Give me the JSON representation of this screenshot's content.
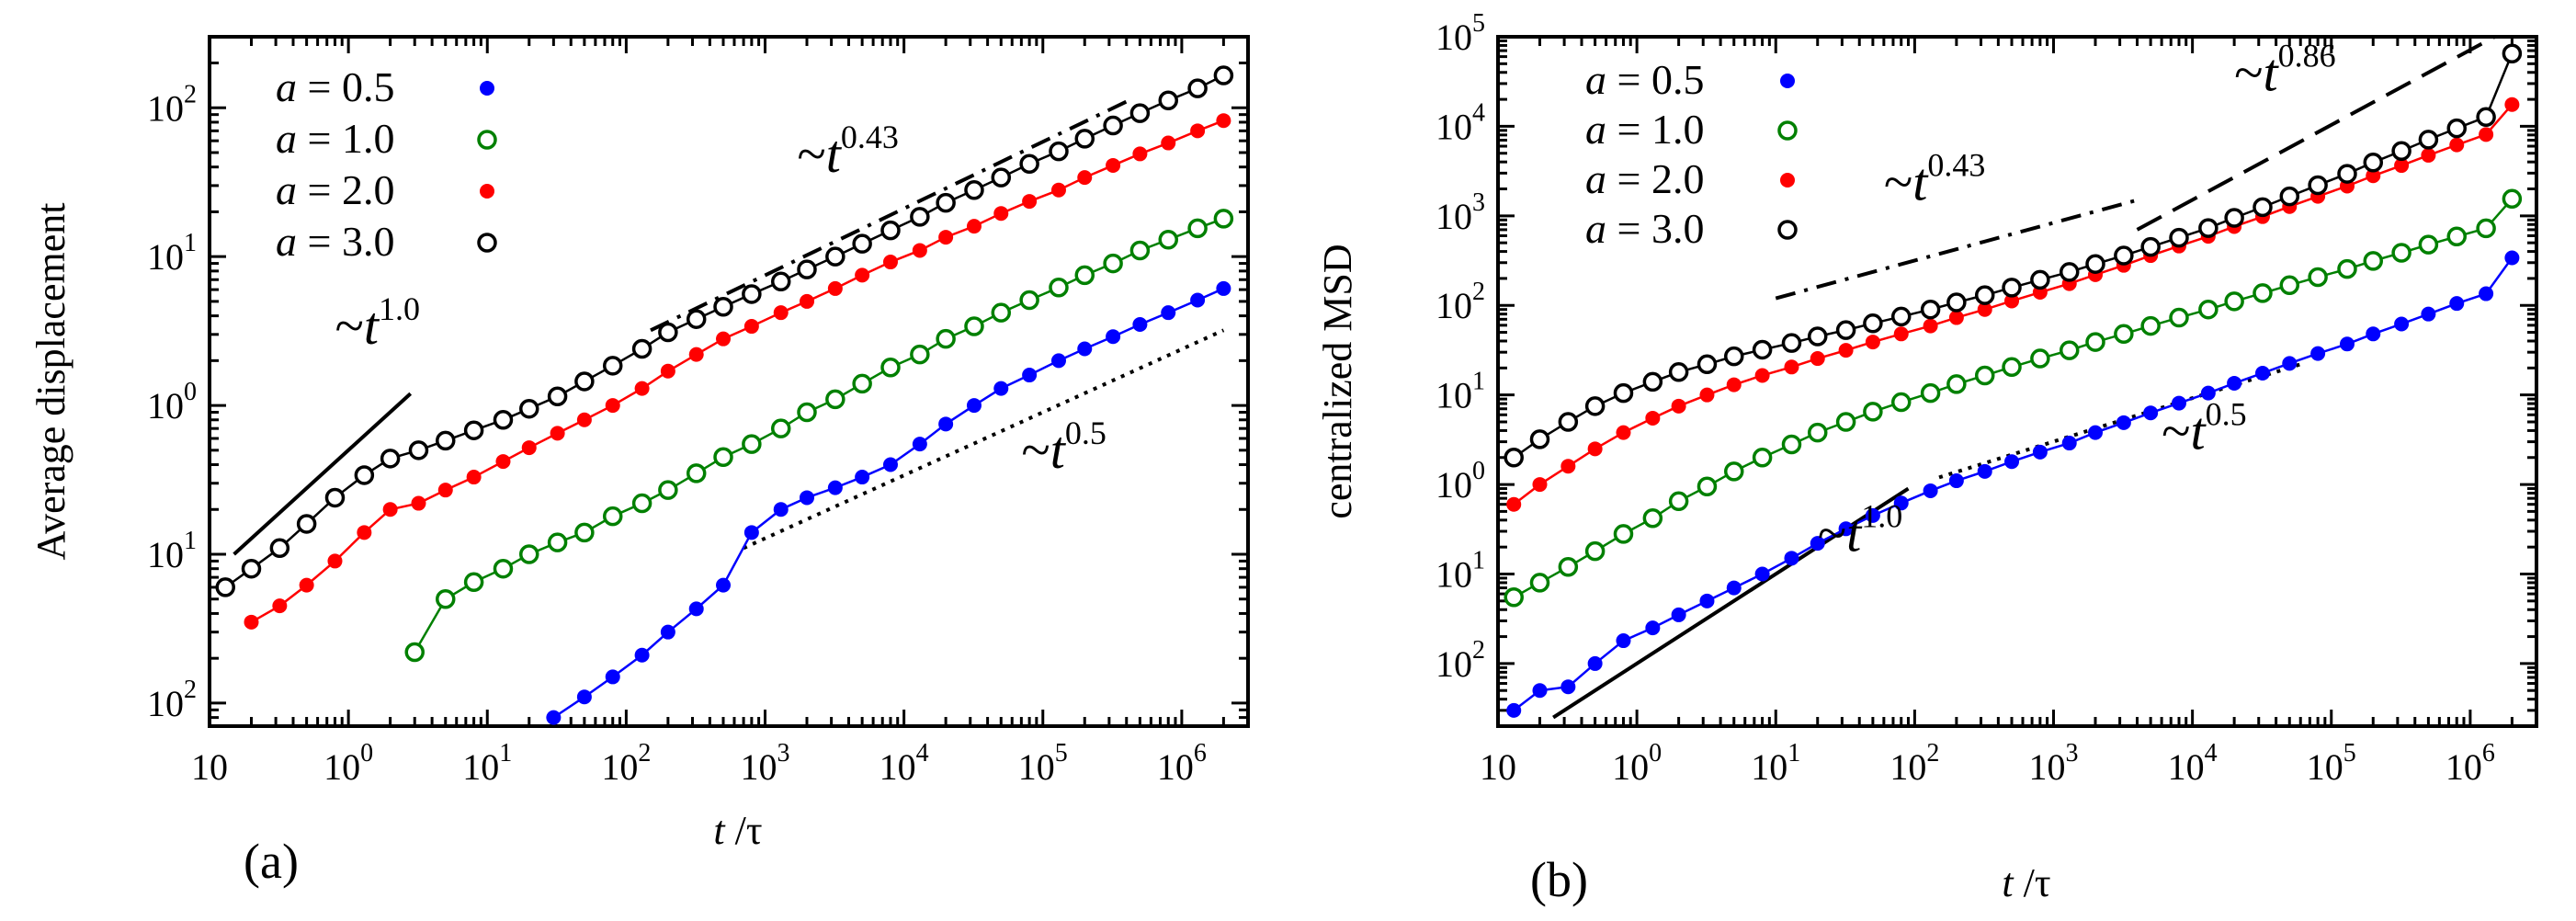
{
  "chart_data": [
    {
      "type": "line",
      "panel_label": "(a)",
      "xlabel": "t /τ",
      "ylabel": "Average displacement",
      "xscale": "log",
      "yscale": "log",
      "xlim": [
        0.1,
        3000000
      ],
      "ylim": [
        0.007,
        300
      ],
      "x_ticks": [
        {
          "value": 0.1,
          "base": "10",
          "exp": ""
        },
        {
          "value": 1,
          "base": "10",
          "exp": "0"
        },
        {
          "value": 10,
          "base": "10",
          "exp": "1"
        },
        {
          "value": 100,
          "base": "10",
          "exp": "2"
        },
        {
          "value": 1000,
          "base": "10",
          "exp": "3"
        },
        {
          "value": 10000,
          "base": "10",
          "exp": "4"
        },
        {
          "value": 100000,
          "base": "10",
          "exp": "5"
        },
        {
          "value": 1000000,
          "base": "10",
          "exp": "6"
        }
      ],
      "y_ticks": [
        {
          "value": 0.01,
          "base": "10",
          "exp": "2"
        },
        {
          "value": 0.1,
          "base": "10",
          "exp": "1"
        },
        {
          "value": 1,
          "base": "10",
          "exp": "0"
        },
        {
          "value": 10,
          "base": "10",
          "exp": "1"
        },
        {
          "value": 100,
          "base": "10",
          "exp": "2"
        }
      ],
      "legend_position": "top-left",
      "series": [
        {
          "name": "a = 0.5",
          "a": "0.5",
          "color": "#0000ff",
          "marker": "filled",
          "x": [
            30,
            50,
            80,
            130,
            200,
            320,
            500,
            800,
            1300,
            2000,
            3200,
            5000,
            8000,
            13000,
            20000,
            32000,
            50000,
            80000,
            130000,
            200000,
            320000,
            500000,
            800000,
            1300000,
            2000000
          ],
          "y": [
            0.008,
            0.011,
            0.015,
            0.021,
            0.03,
            0.043,
            0.062,
            0.14,
            0.2,
            0.24,
            0.28,
            0.33,
            0.4,
            0.55,
            0.75,
            1.0,
            1.3,
            1.6,
            2.0,
            2.4,
            2.9,
            3.5,
            4.2,
            5.1,
            6.1
          ]
        },
        {
          "name": "a = 1.0",
          "a": "1.0",
          "color": "#008000",
          "marker": "open",
          "x": [
            3,
            5,
            8,
            13,
            20,
            32,
            50,
            80,
            130,
            200,
            320,
            500,
            800,
            1300,
            2000,
            3200,
            5000,
            8000,
            13000,
            20000,
            32000,
            50000,
            80000,
            130000,
            200000,
            320000,
            500000,
            800000,
            1300000,
            2000000
          ],
          "y": [
            0.022,
            0.05,
            0.065,
            0.08,
            0.1,
            0.12,
            0.14,
            0.18,
            0.22,
            0.27,
            0.35,
            0.45,
            0.55,
            0.7,
            0.9,
            1.1,
            1.4,
            1.8,
            2.2,
            2.8,
            3.4,
            4.2,
            5.1,
            6.2,
            7.5,
            9.0,
            11,
            13,
            15.5,
            18
          ]
        },
        {
          "name": "a = 2.0",
          "a": "2.0",
          "color": "#ff0000",
          "marker": "filled",
          "x": [
            0.2,
            0.32,
            0.5,
            0.8,
            1.3,
            2,
            3.2,
            5,
            8,
            13,
            20,
            32,
            50,
            80,
            130,
            200,
            320,
            500,
            800,
            1300,
            2000,
            3200,
            5000,
            8000,
            13000,
            20000,
            32000,
            50000,
            80000,
            130000,
            200000,
            320000,
            500000,
            800000,
            1300000,
            2000000
          ],
          "y": [
            0.035,
            0.045,
            0.062,
            0.09,
            0.14,
            0.2,
            0.22,
            0.27,
            0.33,
            0.42,
            0.52,
            0.65,
            0.8,
            1.0,
            1.3,
            1.7,
            2.2,
            2.8,
            3.4,
            4.2,
            5.0,
            6.1,
            7.5,
            9.2,
            11,
            13.5,
            16,
            19.5,
            23.5,
            28,
            34,
            41,
            49,
            58,
            70,
            82
          ]
        },
        {
          "name": "a = 3.0",
          "a": "3.0",
          "color": "#000000",
          "marker": "open",
          "x": [
            0.13,
            0.2,
            0.32,
            0.5,
            0.8,
            1.3,
            2,
            3.2,
            5,
            8,
            13,
            20,
            32,
            50,
            80,
            130,
            200,
            320,
            500,
            800,
            1300,
            2000,
            3200,
            5000,
            8000,
            13000,
            20000,
            32000,
            50000,
            80000,
            130000,
            200000,
            320000,
            500000,
            800000,
            1300000,
            2000000
          ],
          "y": [
            0.06,
            0.08,
            0.11,
            0.16,
            0.24,
            0.34,
            0.44,
            0.5,
            0.58,
            0.68,
            0.8,
            0.95,
            1.15,
            1.45,
            1.85,
            2.4,
            3.1,
            3.8,
            4.6,
            5.6,
            6.8,
            8.2,
            10,
            12.2,
            15,
            18.5,
            23,
            28,
            34,
            42,
            51,
            62,
            76,
            92,
            112,
            135,
            165
          ]
        }
      ],
      "guides": [
        {
          "label_base": "~t",
          "label_exp": "1.0",
          "style": "solid",
          "x": [
            0.15,
            2.8
          ],
          "y": [
            0.1,
            1.2
          ],
          "label_x": 0.8,
          "label_y": 2.6
        },
        {
          "label_base": "~t",
          "label_exp": "0.43",
          "style": "dashdot",
          "x": [
            150,
            400000
          ],
          "y": [
            3.2,
            110
          ],
          "label_x": 1700,
          "label_y": 37
        },
        {
          "label_base": "~t",
          "label_exp": "0.5",
          "style": "dotted",
          "x": [
            700,
            2000000
          ],
          "y": [
            0.11,
            3.2
          ],
          "label_x": 70000,
          "label_y": 0.38
        }
      ]
    },
    {
      "type": "line",
      "panel_label": "(b)",
      "xlabel": "t /τ",
      "ylabel": "centralized MSD",
      "xscale": "log",
      "yscale": "log",
      "xlim": [
        0.1,
        3000000
      ],
      "ylim": [
        0.002,
        100000
      ],
      "x_ticks": [
        {
          "value": 0.1,
          "base": "10",
          "exp": ""
        },
        {
          "value": 1,
          "base": "10",
          "exp": "0"
        },
        {
          "value": 10,
          "base": "10",
          "exp": "1"
        },
        {
          "value": 100,
          "base": "10",
          "exp": "2"
        },
        {
          "value": 1000,
          "base": "10",
          "exp": "3"
        },
        {
          "value": 10000,
          "base": "10",
          "exp": "4"
        },
        {
          "value": 100000,
          "base": "10",
          "exp": "5"
        },
        {
          "value": 1000000,
          "base": "10",
          "exp": "6"
        }
      ],
      "y_ticks": [
        {
          "value": 0.01,
          "base": "10",
          "exp": "2"
        },
        {
          "value": 0.1,
          "base": "10",
          "exp": "1"
        },
        {
          "value": 1,
          "base": "10",
          "exp": "0"
        },
        {
          "value": 10,
          "base": "10",
          "exp": "1"
        },
        {
          "value": 100,
          "base": "10",
          "exp": "2"
        },
        {
          "value": 1000,
          "base": "10",
          "exp": "3"
        },
        {
          "value": 10000,
          "base": "10",
          "exp": "4"
        },
        {
          "value": 100000,
          "base": "10",
          "exp": "5"
        }
      ],
      "legend_position": "top-left",
      "series": [
        {
          "name": "a = 0.5",
          "a": "0.5",
          "color": "#0000ff",
          "marker": "filled",
          "x": [
            0.13,
            0.2,
            0.32,
            0.5,
            0.8,
            1.3,
            2,
            3.2,
            5,
            8,
            13,
            20,
            32,
            50,
            80,
            130,
            200,
            320,
            500,
            800,
            1300,
            2000,
            3200,
            5000,
            8000,
            13000,
            20000,
            32000,
            50000,
            80000,
            130000,
            200000,
            320000,
            500000,
            800000,
            1300000,
            2000000
          ],
          "y": [
            0.003,
            0.005,
            0.0055,
            0.01,
            0.018,
            0.025,
            0.035,
            0.05,
            0.07,
            0.1,
            0.15,
            0.22,
            0.32,
            0.45,
            0.62,
            0.85,
            1.1,
            1.4,
            1.8,
            2.3,
            2.9,
            3.8,
            4.9,
            6.3,
            8.1,
            10.5,
            13.5,
            17.5,
            22.5,
            29,
            37,
            48,
            62,
            80,
            105,
            135,
            340
          ]
        },
        {
          "name": "a = 1.0",
          "a": "1.0",
          "color": "#008000",
          "marker": "open",
          "x": [
            0.13,
            0.2,
            0.32,
            0.5,
            0.8,
            1.3,
            2,
            3.2,
            5,
            8,
            13,
            20,
            32,
            50,
            80,
            130,
            200,
            320,
            500,
            800,
            1300,
            2000,
            3200,
            5000,
            8000,
            13000,
            20000,
            32000,
            50000,
            80000,
            130000,
            200000,
            320000,
            500000,
            800000,
            1300000,
            2000000
          ],
          "y": [
            0.055,
            0.08,
            0.12,
            0.18,
            0.28,
            0.42,
            0.65,
            0.95,
            1.4,
            2.0,
            2.8,
            3.8,
            5.0,
            6.5,
            8.3,
            10.5,
            13.2,
            16.5,
            20.5,
            25.5,
            31.5,
            39,
            48,
            59,
            73,
            90,
            111,
            137,
            168,
            207,
            255,
            314,
            387,
            477,
            588,
            725,
            1550
          ]
        },
        {
          "name": "a = 2.0",
          "a": "2.0",
          "color": "#ff0000",
          "marker": "filled",
          "x": [
            0.13,
            0.2,
            0.32,
            0.5,
            0.8,
            1.3,
            2,
            3.2,
            5,
            8,
            13,
            20,
            32,
            50,
            80,
            130,
            200,
            320,
            500,
            800,
            1300,
            2000,
            3200,
            5000,
            8000,
            13000,
            20000,
            32000,
            50000,
            80000,
            130000,
            200000,
            320000,
            500000,
            800000,
            1300000,
            2000000
          ],
          "y": [
            0.6,
            1.0,
            1.6,
            2.5,
            3.8,
            5.5,
            7.5,
            10,
            13,
            16.5,
            20.5,
            25.5,
            31.5,
            39,
            48,
            59,
            73,
            90,
            112,
            140,
            175,
            220,
            280,
            360,
            460,
            590,
            760,
            980,
            1270,
            1650,
            2150,
            2800,
            3650,
            4750,
            6200,
            8100,
            17500
          ]
        },
        {
          "name": "a = 3.0",
          "a": "3.0",
          "color": "#000000",
          "marker": "open",
          "x": [
            0.13,
            0.2,
            0.32,
            0.5,
            0.8,
            1.3,
            2,
            3.2,
            5,
            8,
            13,
            20,
            32,
            50,
            80,
            130,
            200,
            320,
            500,
            800,
            1300,
            2000,
            3200,
            5000,
            8000,
            13000,
            20000,
            32000,
            50000,
            80000,
            130000,
            200000,
            320000,
            500000,
            800000,
            1300000,
            2000000
          ],
          "y": [
            2.0,
            3.2,
            5.0,
            7.5,
            10.5,
            14,
            18,
            22,
            27,
            32,
            38,
            45,
            53,
            63,
            75,
            90,
            108,
            130,
            158,
            193,
            236,
            290,
            360,
            450,
            570,
            730,
            950,
            1250,
            1650,
            2200,
            2950,
            3950,
            5300,
            7100,
            9500,
            12700,
            65000
          ]
        }
      ],
      "guides": [
        {
          "label_base": "~t",
          "label_exp": "1.0",
          "style": "solid",
          "x": [
            0.25,
            90
          ],
          "y": [
            0.0025,
            0.9
          ],
          "label_x": 20,
          "label_y": 0.18
        },
        {
          "label_base": "~t",
          "label_exp": "0.43",
          "style": "dashdot",
          "x": [
            10,
            4000
          ],
          "y": [
            120,
            1500
          ],
          "label_x": 60,
          "label_y": 1500
        },
        {
          "label_base": "~t",
          "label_exp": "0.86",
          "style": "dashed",
          "x": [
            4000,
            1500000
          ],
          "y": [
            700,
            100000
          ],
          "label_x": 20000,
          "label_y": 25000
        },
        {
          "label_base": "~t",
          "label_exp": "0.5",
          "style": "dotted",
          "x": [
            150,
            60000
          ],
          "y": [
            1.2,
            22
          ],
          "label_x": 6000,
          "label_y": 2.5
        }
      ]
    }
  ]
}
